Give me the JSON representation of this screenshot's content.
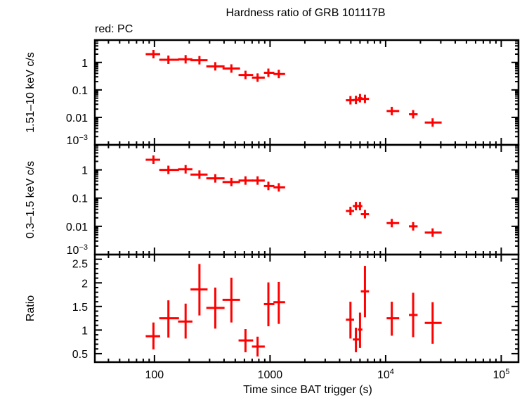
{
  "chart_data": {
    "type": "scatter",
    "title": "Hardness ratio of GRB 101117B",
    "legend_text": "red: PC",
    "series_color": "#ff0000",
    "xlabel": "Time since BAT trigger (s)",
    "x_scale": "log",
    "xlim": [
      30.5,
      141000
    ],
    "x_ticks": [
      {
        "v": 100,
        "label": "100"
      },
      {
        "v": 1000,
        "label": "1000"
      },
      {
        "v": 10000,
        "label": "10",
        "sup": "4"
      },
      {
        "v": 100000,
        "label": "10",
        "sup": "5"
      }
    ],
    "x": [
      98,
      132,
      186,
      245,
      336,
      463,
      613,
      780,
      967,
      1190,
      4960,
      5530,
      6000,
      6620,
      11300,
      17300,
      25500
    ],
    "x_low": [
      84,
      110,
      160,
      205,
      281,
      388,
      534,
      697,
      885,
      1070,
      4530,
      5200,
      5740,
      6100,
      10200,
      15900,
      21800
    ],
    "x_high": [
      112,
      163,
      213,
      288,
      404,
      550,
      714,
      900,
      1090,
      1350,
      5330,
      5880,
      6290,
      7180,
      13100,
      18900,
      30500
    ],
    "panels": [
      {
        "ylabel": "1.51–10 keV c/s",
        "y_scale": "log",
        "ylim": [
          0.001,
          6.5
        ],
        "y_ticks": [
          {
            "v": 1,
            "label": "1"
          },
          {
            "v": 0.1,
            "label": "0.1"
          },
          {
            "v": 0.01,
            "label": "0.01"
          },
          {
            "v": 0.001,
            "label": "10",
            "sup": "−3"
          }
        ],
        "y": [
          2.0,
          1.25,
          1.3,
          1.2,
          0.72,
          0.6,
          0.35,
          0.28,
          0.42,
          0.38,
          0.042,
          0.043,
          0.05,
          0.047,
          0.017,
          0.013,
          0.0065
        ]
      },
      {
        "ylabel": "0.3–1.5 keV c/s",
        "y_scale": "log",
        "ylim": [
          0.001,
          7.7
        ],
        "y_ticks": [
          {
            "v": 1,
            "label": "1"
          },
          {
            "v": 0.1,
            "label": "0.1"
          },
          {
            "v": 0.01,
            "label": "0.01"
          },
          {
            "v": 0.001,
            "label": "10",
            "sup": "−3"
          }
        ],
        "y": [
          2.3,
          1.0,
          1.05,
          0.68,
          0.5,
          0.37,
          0.42,
          0.42,
          0.27,
          0.24,
          0.035,
          0.052,
          0.052,
          0.027,
          0.013,
          0.01,
          0.006
        ]
      },
      {
        "ylabel": "Ratio",
        "y_scale": "linear",
        "ylim": [
          0.32,
          2.6
        ],
        "y_ticks": [
          {
            "v": 2.5,
            "label": "2.5"
          },
          {
            "v": 2,
            "label": "2"
          },
          {
            "v": 1.5,
            "label": "1.5"
          },
          {
            "v": 1,
            "label": "1"
          },
          {
            "v": 0.5,
            "label": "0.5"
          }
        ],
        "y": [
          0.87,
          1.25,
          1.18,
          1.86,
          1.47,
          1.64,
          0.78,
          0.65,
          1.55,
          1.59,
          1.22,
          0.8,
          1.01,
          1.82,
          1.25,
          1.32,
          1.15
        ],
        "y_low": [
          0.59,
          0.84,
          0.82,
          1.31,
          1.03,
          1.16,
          0.53,
          0.44,
          1.08,
          1.13,
          0.82,
          0.53,
          0.62,
          1.27,
          0.88,
          0.85,
          0.71
        ],
        "y_high": [
          1.16,
          1.63,
          1.56,
          2.4,
          1.9,
          2.11,
          1.02,
          0.86,
          2.01,
          2.02,
          1.6,
          1.05,
          1.37,
          2.36,
          1.6,
          1.79,
          1.59
        ]
      }
    ]
  }
}
